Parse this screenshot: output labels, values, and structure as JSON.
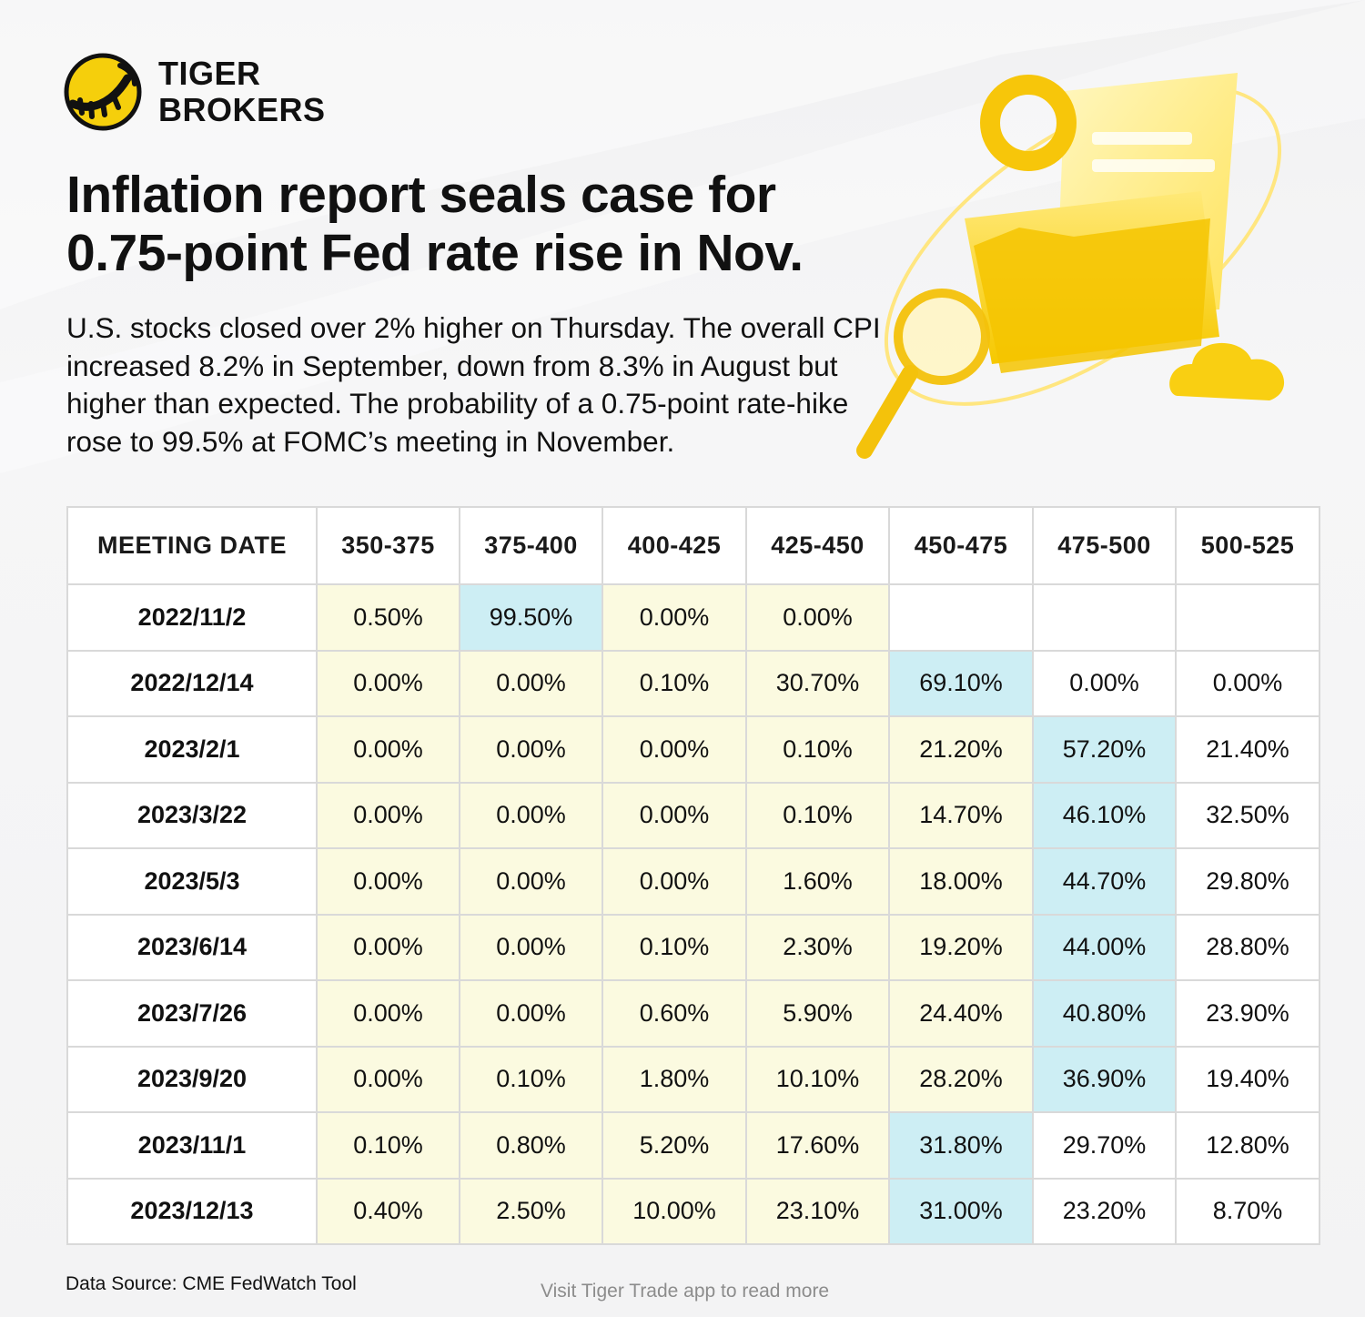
{
  "brand": {
    "line1": "TIGER",
    "line2": "BROKERS",
    "logo_icon": "tiger-stripes-icon",
    "colors": {
      "yellow": "#f5cf0c",
      "black": "#111111"
    }
  },
  "headline": {
    "line1": "Inflation report seals case for",
    "line2": "0.75-point Fed rate rise in Nov."
  },
  "summary": "U.S. stocks closed over 2% higher on Thursday. The overall CPI increased 8.2% in September, down from 8.3% in August but higher than expected. The probability of a 0.75-point rate-hike rose to 99.5% at FOMC’s meeting in November.",
  "illustration": "folder-magnifier-cloud-illustration",
  "colors": {
    "highlight_cell": "#cdeef4",
    "range_cell": "#fbfae0",
    "plain_cell": "#ffffff",
    "grid": "#d9d9d9"
  },
  "chart_data": {
    "type": "table",
    "columns": [
      "MEETING DATE",
      "350-375",
      "375-400",
      "400-425",
      "425-450",
      "450-475",
      "475-500",
      "500-525"
    ],
    "rows": [
      {
        "date": "2022/11/2",
        "values": [
          "0.50%",
          "99.50%",
          "0.00%",
          "0.00%",
          "",
          "",
          ""
        ],
        "highlight": 1,
        "range": [
          0,
          3
        ]
      },
      {
        "date": "2022/12/14",
        "values": [
          "0.00%",
          "0.00%",
          "0.10%",
          "30.70%",
          "69.10%",
          "0.00%",
          "0.00%"
        ],
        "highlight": 4,
        "range": [
          0,
          4
        ]
      },
      {
        "date": "2023/2/1",
        "values": [
          "0.00%",
          "0.00%",
          "0.00%",
          "0.10%",
          "21.20%",
          "57.20%",
          "21.40%"
        ],
        "highlight": 5,
        "range": [
          0,
          5
        ]
      },
      {
        "date": "2023/3/22",
        "values": [
          "0.00%",
          "0.00%",
          "0.00%",
          "0.10%",
          "14.70%",
          "46.10%",
          "32.50%"
        ],
        "highlight": 5,
        "range": [
          0,
          5
        ]
      },
      {
        "date": "2023/5/3",
        "values": [
          "0.00%",
          "0.00%",
          "0.00%",
          "1.60%",
          "18.00%",
          "44.70%",
          "29.80%"
        ],
        "highlight": 5,
        "range": [
          0,
          5
        ]
      },
      {
        "date": "2023/6/14",
        "values": [
          "0.00%",
          "0.00%",
          "0.10%",
          "2.30%",
          "19.20%",
          "44.00%",
          "28.80%"
        ],
        "highlight": 5,
        "range": [
          0,
          5
        ]
      },
      {
        "date": "2023/7/26",
        "values": [
          "0.00%",
          "0.00%",
          "0.60%",
          "5.90%",
          "24.40%",
          "40.80%",
          "23.90%"
        ],
        "highlight": 5,
        "range": [
          0,
          5
        ]
      },
      {
        "date": "2023/9/20",
        "values": [
          "0.00%",
          "0.10%",
          "1.80%",
          "10.10%",
          "28.20%",
          "36.90%",
          "19.40%"
        ],
        "highlight": 5,
        "range": [
          0,
          5
        ]
      },
      {
        "date": "2023/11/1",
        "values": [
          "0.10%",
          "0.80%",
          "5.20%",
          "17.60%",
          "31.80%",
          "29.70%",
          "12.80%"
        ],
        "highlight": 4,
        "range": [
          0,
          4
        ]
      },
      {
        "date": "2023/12/13",
        "values": [
          "0.40%",
          "2.50%",
          "10.00%",
          "23.10%",
          "31.00%",
          "23.20%",
          "8.70%"
        ],
        "highlight": 4,
        "range": [
          0,
          4
        ]
      }
    ]
  },
  "source": "Data Source: CME FedWatch Tool",
  "footer": "Visit Tiger Trade app to read more"
}
